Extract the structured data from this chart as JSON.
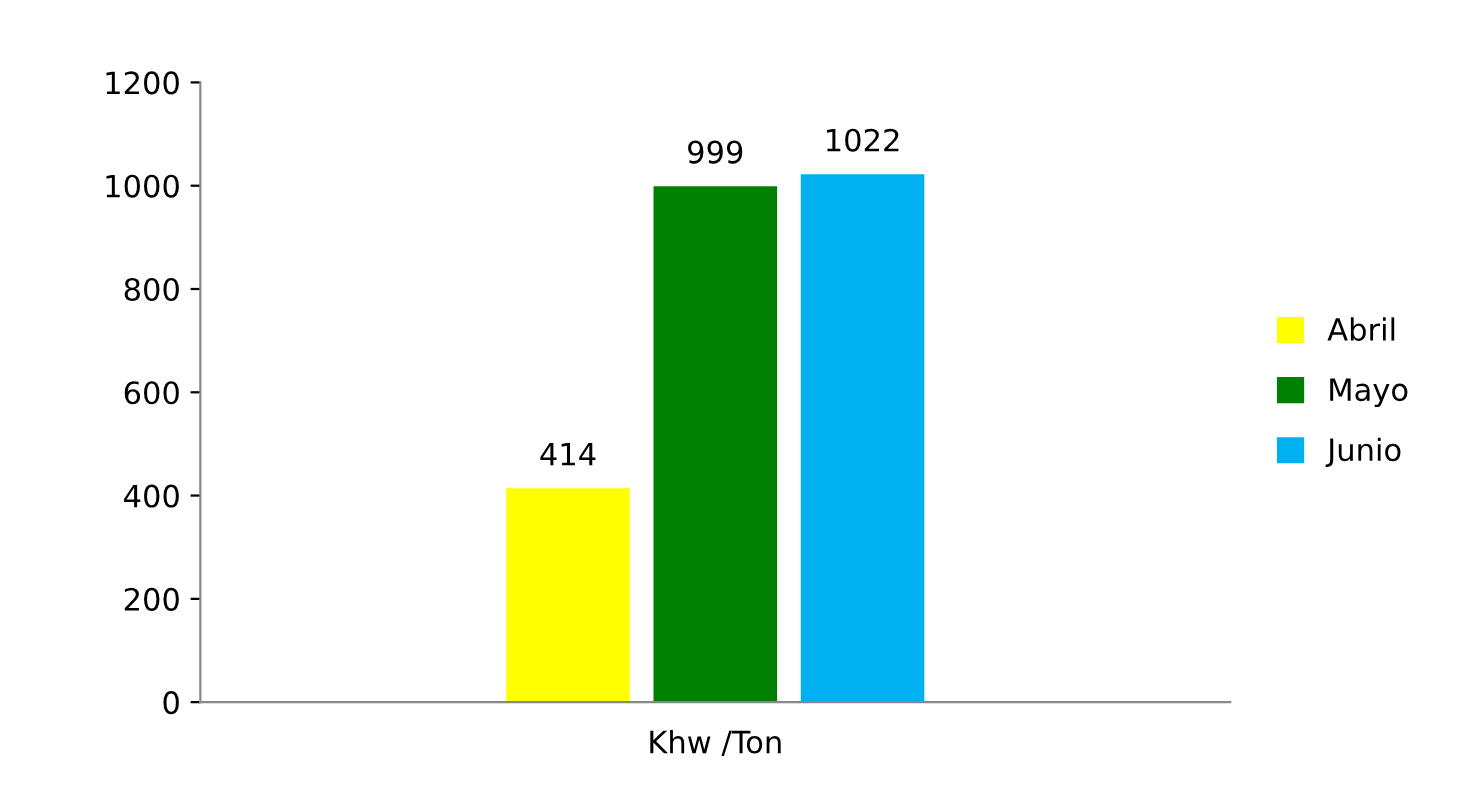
{
  "chart_data": {
    "type": "bar",
    "categories": [
      "Khw /Ton"
    ],
    "series": [
      {
        "name": "Abril",
        "color": "#ffff00",
        "values": [
          414
        ]
      },
      {
        "name": "Mayo",
        "color": "#008000",
        "values": [
          999
        ]
      },
      {
        "name": "Junio",
        "color": "#00b0f0",
        "values": [
          1022
        ]
      }
    ],
    "ylim": [
      0,
      1200
    ],
    "yticks": [
      0,
      200,
      400,
      600,
      800,
      1000,
      1200
    ],
    "grid": false,
    "legend": "right",
    "data_labels": true
  }
}
